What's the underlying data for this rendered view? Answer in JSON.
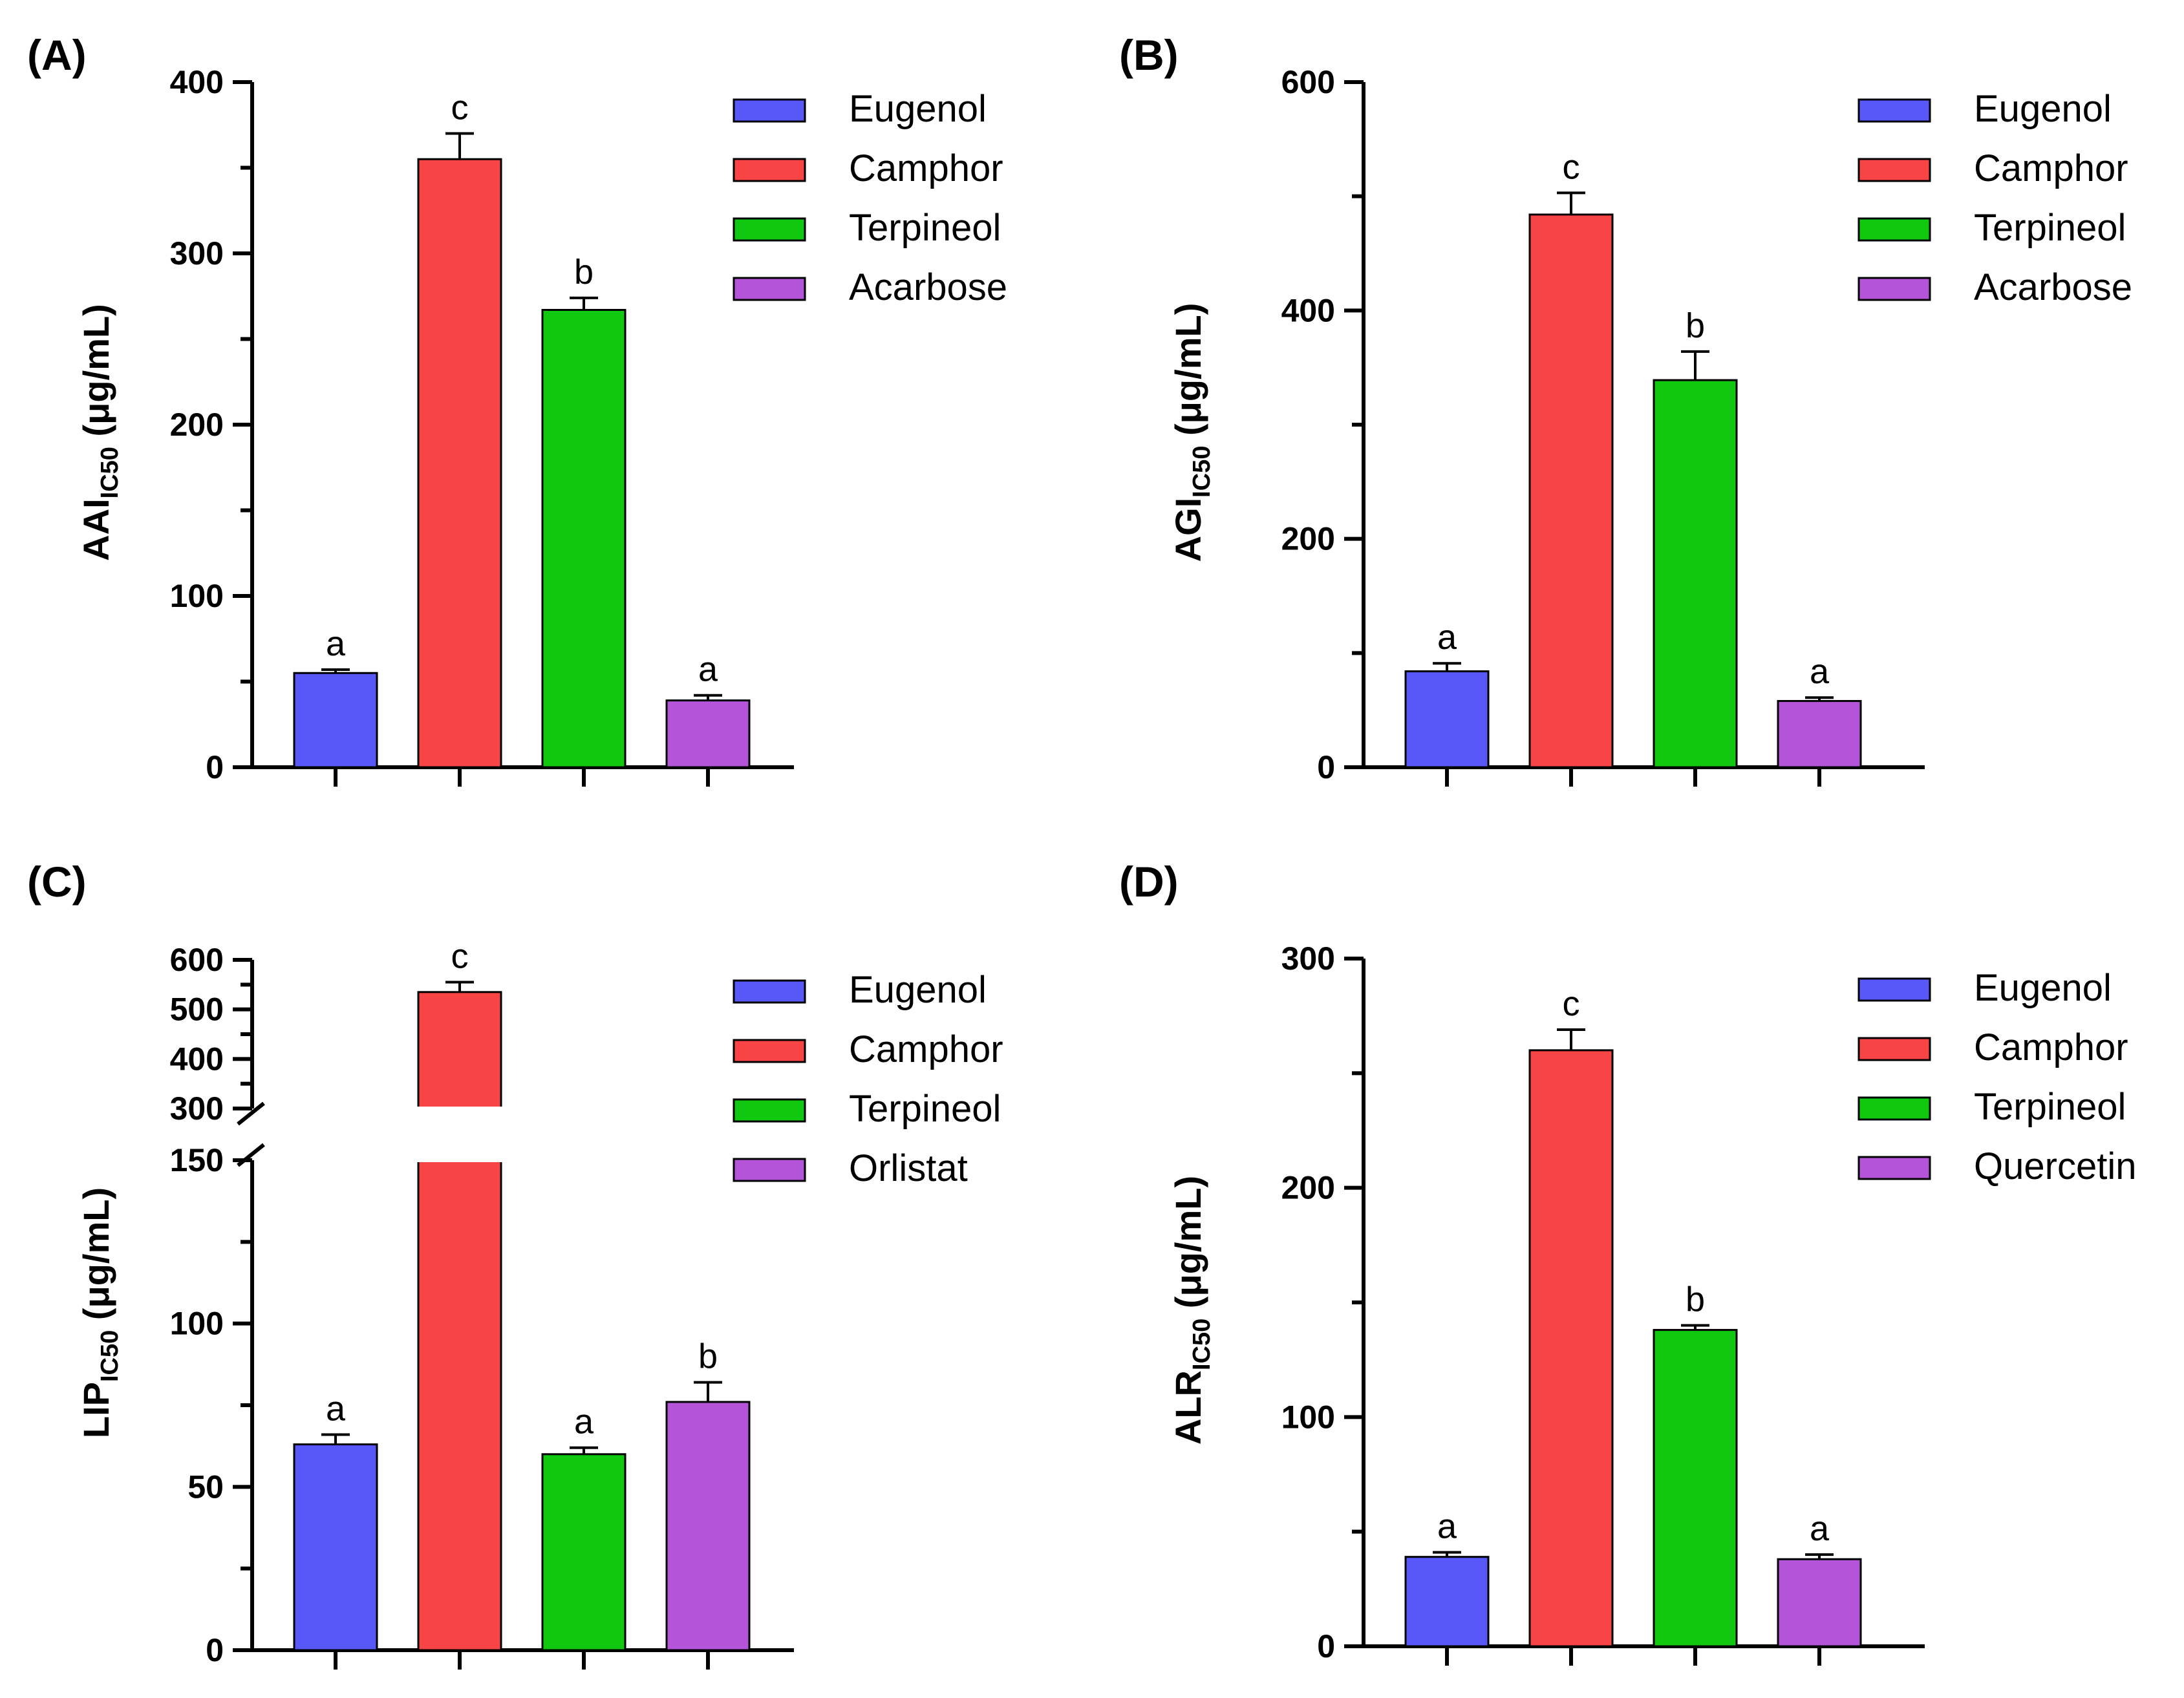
{
  "chart_data": [
    {
      "panel": "(A)",
      "type": "bar",
      "categories": [
        "Eugenol",
        "Camphor",
        "Terpineol",
        "Acarbose"
      ],
      "values": [
        55,
        355,
        267,
        39
      ],
      "errors": [
        2,
        15,
        7,
        3
      ],
      "significance": [
        "a",
        "c",
        "b",
        "a"
      ],
      "colors": [
        "#5858f8",
        "#f84444",
        "#10c810",
        "#b454d8"
      ],
      "ylabel_main": "AAI",
      "ylabel_sub": "IC50",
      "ylabel_unit": "(μg/mL)",
      "ylim": [
        0,
        400
      ],
      "yticks": [
        0,
        100,
        200,
        300,
        400
      ],
      "ytick_labels": [
        "0",
        "100",
        "200",
        "300",
        "400"
      ],
      "minor_step": 50,
      "legend": [
        "Eugenol",
        "Camphor",
        "Terpineol",
        "Acarbose"
      ],
      "legend_position": "top-right",
      "grid": false
    },
    {
      "panel": "(B)",
      "type": "bar",
      "categories": [
        "Eugenol",
        "Camphor",
        "Terpineol",
        "Acarbose"
      ],
      "values": [
        84,
        484,
        339,
        58
      ],
      "errors": [
        7,
        19,
        25,
        3
      ],
      "significance": [
        "a",
        "c",
        "b",
        "a"
      ],
      "colors": [
        "#5858f8",
        "#f84444",
        "#10c810",
        "#b454d8"
      ],
      "ylabel_main": "AGI",
      "ylabel_sub": "IC50",
      "ylabel_unit": "(μg/mL)",
      "ylim": [
        0,
        600
      ],
      "yticks": [
        0,
        200,
        400,
        600
      ],
      "ytick_labels": [
        "0",
        "200",
        "400",
        "600"
      ],
      "minor_step": 100,
      "legend": [
        "Eugenol",
        "Camphor",
        "Terpineol",
        "Acarbose"
      ],
      "legend_position": "top-right",
      "grid": false
    },
    {
      "panel": "(C)",
      "type": "bar",
      "categories": [
        "Eugenol",
        "Camphor",
        "Terpineol",
        "Orlistat"
      ],
      "values": [
        63,
        535,
        60,
        76
      ],
      "errors": [
        3,
        20,
        2,
        6
      ],
      "significance": [
        "a",
        "c",
        "a",
        "b"
      ],
      "colors": [
        "#5858f8",
        "#f84444",
        "#10c810",
        "#b454d8"
      ],
      "ylabel_main": "LIP",
      "ylabel_sub": "IC50",
      "ylabel_unit": "(μg/mL)",
      "ylim": [
        0,
        600
      ],
      "axis_break": [
        150,
        300
      ],
      "yticks": [
        0,
        50,
        100,
        150,
        300,
        400,
        500,
        600
      ],
      "ytick_labels": [
        "0",
        "50",
        "100",
        "150",
        "300",
        "400",
        "500",
        "600"
      ],
      "minor_step": 25,
      "upper_minor_step": 50,
      "legend": [
        "Eugenol",
        "Camphor",
        "Terpineol",
        "Orlistat"
      ],
      "legend_position": "top-right",
      "grid": false
    },
    {
      "panel": "(D)",
      "type": "bar",
      "categories": [
        "Eugenol",
        "Camphor",
        "Terpineol",
        "Quercetin"
      ],
      "values": [
        39,
        260,
        138,
        38
      ],
      "errors": [
        2,
        9,
        2,
        2
      ],
      "significance": [
        "a",
        "c",
        "b",
        "a"
      ],
      "colors": [
        "#5858f8",
        "#f84444",
        "#10c810",
        "#b454d8"
      ],
      "ylabel_main": "ALR",
      "ylabel_sub": "IC50",
      "ylabel_unit": "(μg/mL)",
      "ylim": [
        0,
        300
      ],
      "yticks": [
        0,
        100,
        200,
        300
      ],
      "ytick_labels": [
        "0",
        "100",
        "200",
        "300"
      ],
      "minor_step": 50,
      "legend": [
        "Eugenol",
        "Camphor",
        "Terpineol",
        "Quercetin"
      ],
      "legend_position": "top-right",
      "grid": false
    }
  ]
}
